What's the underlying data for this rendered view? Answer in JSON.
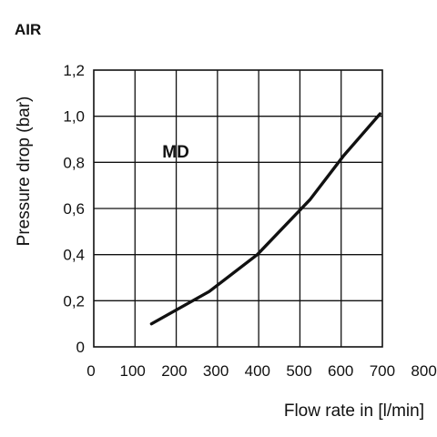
{
  "chart_data": {
    "type": "line",
    "title": "AIR",
    "xlabel": "Flow rate in [l/min]",
    "ylabel": "Pressure drop (bar)",
    "xlim": [
      100,
      700
    ],
    "ylim": [
      0,
      1.2
    ],
    "x_ticks": [
      "0",
      "100",
      "200",
      "300",
      "400",
      "500",
      "600",
      "700",
      "800"
    ],
    "y_ticks": [
      "0",
      "0,2",
      "0,4",
      "0,6",
      "0,8",
      "1,0",
      "1,2"
    ],
    "grid": true,
    "annotations": [
      {
        "text": "MD",
        "x": 250,
        "y": 0.9
      }
    ],
    "series": [
      {
        "x": [
          220,
          340,
          440,
          550,
          620,
          695
        ],
        "y": [
          0.1,
          0.24,
          0.4,
          0.64,
          0.83,
          1.01
        ]
      }
    ]
  }
}
